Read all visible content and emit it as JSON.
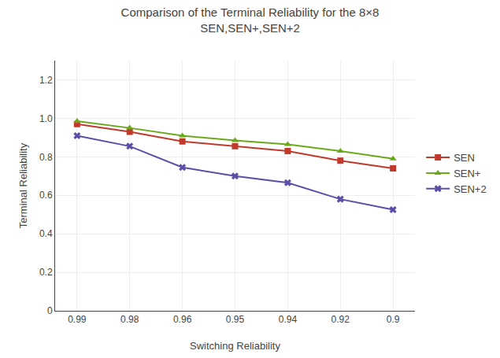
{
  "chart_data": {
    "type": "line",
    "title": "Comparison of the Terminal Reliability for the 8×8\nSEN,SEN+,SEN+2",
    "x_label": "Switching Reliability",
    "y_label": "Terminal Reliability",
    "categories": [
      "0.99",
      "0.98",
      "0.96",
      "0.95",
      "0.94",
      "0.92",
      "0.9"
    ],
    "series": [
      {
        "name": "SEN",
        "color": "#c0392b",
        "marker": "square",
        "values": [
          0.97,
          0.93,
          0.88,
          0.855,
          0.83,
          0.78,
          0.74
        ]
      },
      {
        "name": "SEN+",
        "color": "#6aaa1a",
        "marker": "triangle-up",
        "values": [
          0.985,
          0.95,
          0.91,
          0.885,
          0.865,
          0.83,
          0.79
        ]
      },
      {
        "name": "SEN+2",
        "color": "#5b4ea8",
        "marker": "x",
        "values": [
          0.91,
          0.855,
          0.745,
          0.7,
          0.665,
          0.58,
          0.525
        ]
      }
    ],
    "ylim": [
      0,
      1.3
    ],
    "yticks": [
      0,
      0.2,
      0.4,
      0.6,
      0.8,
      {
        "value": 1.0,
        "label": "1.0"
      },
      1.2
    ],
    "grid": true,
    "legend": "right"
  }
}
